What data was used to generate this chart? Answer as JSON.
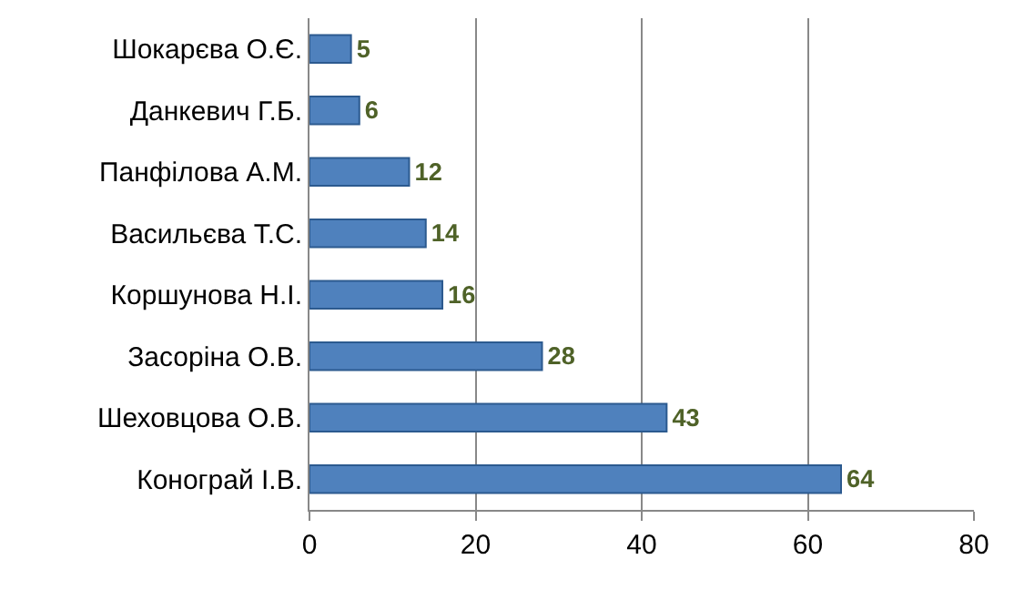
{
  "chart_data": {
    "type": "bar",
    "orientation": "horizontal",
    "categories": [
      "Шокарєва О.Є.",
      "Данкевич Г.Б.",
      "Панфілова А.М.",
      "Васильєва Т.С.",
      "Коршунова Н.І.",
      "Засоріна О.В.",
      "Шеховцова О.В.",
      "Конограй І.В."
    ],
    "values": [
      5,
      6,
      12,
      14,
      16,
      28,
      43,
      64
    ],
    "color": "#4f81bd",
    "data_labels": true,
    "xlim": [
      0,
      80
    ],
    "xticks": [
      0,
      20,
      40,
      60,
      80
    ],
    "grid": "x"
  }
}
